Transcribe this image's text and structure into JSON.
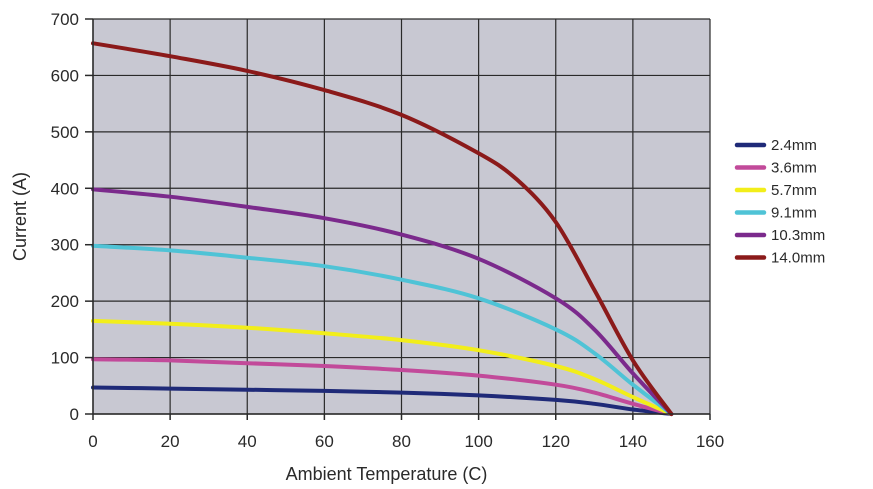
{
  "chart_data": {
    "type": "line",
    "title": "",
    "xlabel": "Ambient Temperature (C)",
    "ylabel": "Current (A)",
    "xlim": [
      0,
      160
    ],
    "ylim": [
      0,
      700
    ],
    "x_ticks": [
      0,
      20,
      40,
      60,
      80,
      100,
      120,
      140,
      160
    ],
    "y_ticks": [
      0,
      100,
      200,
      300,
      400,
      500,
      600,
      700
    ],
    "grid": true,
    "legend_position": "right",
    "plot_background": "#c8c8d2",
    "series": [
      {
        "name": "2.4mm",
        "color": "#1f2a78",
        "points": [
          [
            0,
            47
          ],
          [
            20,
            45
          ],
          [
            40,
            43
          ],
          [
            60,
            41
          ],
          [
            80,
            38
          ],
          [
            100,
            33
          ],
          [
            120,
            25
          ],
          [
            130,
            18
          ],
          [
            140,
            8
          ],
          [
            150,
            0
          ]
        ]
      },
      {
        "name": "3.6mm",
        "color": "#c24a9a",
        "points": [
          [
            0,
            97
          ],
          [
            20,
            95
          ],
          [
            40,
            90
          ],
          [
            60,
            85
          ],
          [
            80,
            78
          ],
          [
            100,
            68
          ],
          [
            120,
            52
          ],
          [
            130,
            38
          ],
          [
            140,
            18
          ],
          [
            150,
            0
          ]
        ]
      },
      {
        "name": "5.7mm",
        "color": "#f2ee1a",
        "points": [
          [
            0,
            165
          ],
          [
            20,
            160
          ],
          [
            40,
            153
          ],
          [
            60,
            143
          ],
          [
            80,
            131
          ],
          [
            100,
            113
          ],
          [
            120,
            85
          ],
          [
            130,
            62
          ],
          [
            140,
            30
          ],
          [
            150,
            0
          ]
        ]
      },
      {
        "name": "9.1mm",
        "color": "#4fc3d6",
        "points": [
          [
            0,
            298
          ],
          [
            20,
            290
          ],
          [
            40,
            277
          ],
          [
            60,
            262
          ],
          [
            80,
            238
          ],
          [
            100,
            205
          ],
          [
            120,
            150
          ],
          [
            130,
            108
          ],
          [
            140,
            52
          ],
          [
            150,
            0
          ]
        ]
      },
      {
        "name": "10.3mm",
        "color": "#7b2a8c",
        "points": [
          [
            0,
            398
          ],
          [
            20,
            385
          ],
          [
            40,
            367
          ],
          [
            60,
            347
          ],
          [
            80,
            318
          ],
          [
            100,
            275
          ],
          [
            120,
            205
          ],
          [
            130,
            150
          ],
          [
            140,
            72
          ],
          [
            150,
            0
          ]
        ]
      },
      {
        "name": "14.0mm",
        "color": "#8b1a1a",
        "points": [
          [
            0,
            657
          ],
          [
            20,
            634
          ],
          [
            40,
            608
          ],
          [
            60,
            574
          ],
          [
            80,
            530
          ],
          [
            100,
            462
          ],
          [
            110,
            415
          ],
          [
            120,
            340
          ],
          [
            130,
            220
          ],
          [
            140,
            95
          ],
          [
            150,
            0
          ]
        ]
      }
    ]
  }
}
